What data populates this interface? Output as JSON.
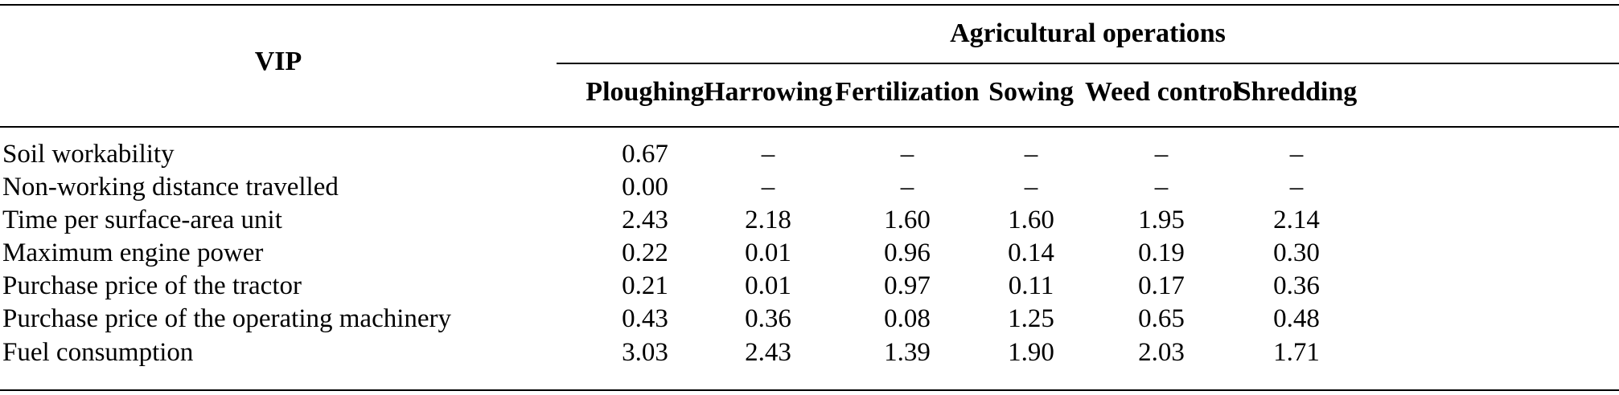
{
  "table": {
    "row_header": "VIP",
    "group_header": "Agricultural operations",
    "columns": [
      "Ploughing",
      "Harrowing",
      "Fertilization",
      "Sowing",
      "Weed control",
      "Shredding"
    ],
    "rows": [
      {
        "label": "Soil workability",
        "values": [
          "0.67",
          "–",
          "–",
          "–",
          "–",
          "–"
        ]
      },
      {
        "label": "Non-working distance travelled",
        "values": [
          "0.00",
          "–",
          "–",
          "–",
          "–",
          "–"
        ]
      },
      {
        "label": "Time per surface-area unit",
        "values": [
          "2.43",
          "2.18",
          "1.60",
          "1.60",
          "1.95",
          "2.14"
        ]
      },
      {
        "label": "Maximum engine power",
        "values": [
          "0.22",
          "0.01",
          "0.96",
          "0.14",
          "0.19",
          "0.30"
        ]
      },
      {
        "label": "Purchase price of the tractor",
        "values": [
          "0.21",
          "0.01",
          "0.97",
          "0.11",
          "0.17",
          "0.36"
        ]
      },
      {
        "label": "Purchase price of the operating machinery",
        "values": [
          "0.43",
          "0.36",
          "0.08",
          "1.25",
          "0.65",
          "0.48"
        ]
      },
      {
        "label": "Fuel consumption",
        "values": [
          "3.03",
          "2.43",
          "1.39",
          "1.90",
          "2.03",
          "1.71"
        ]
      }
    ]
  }
}
